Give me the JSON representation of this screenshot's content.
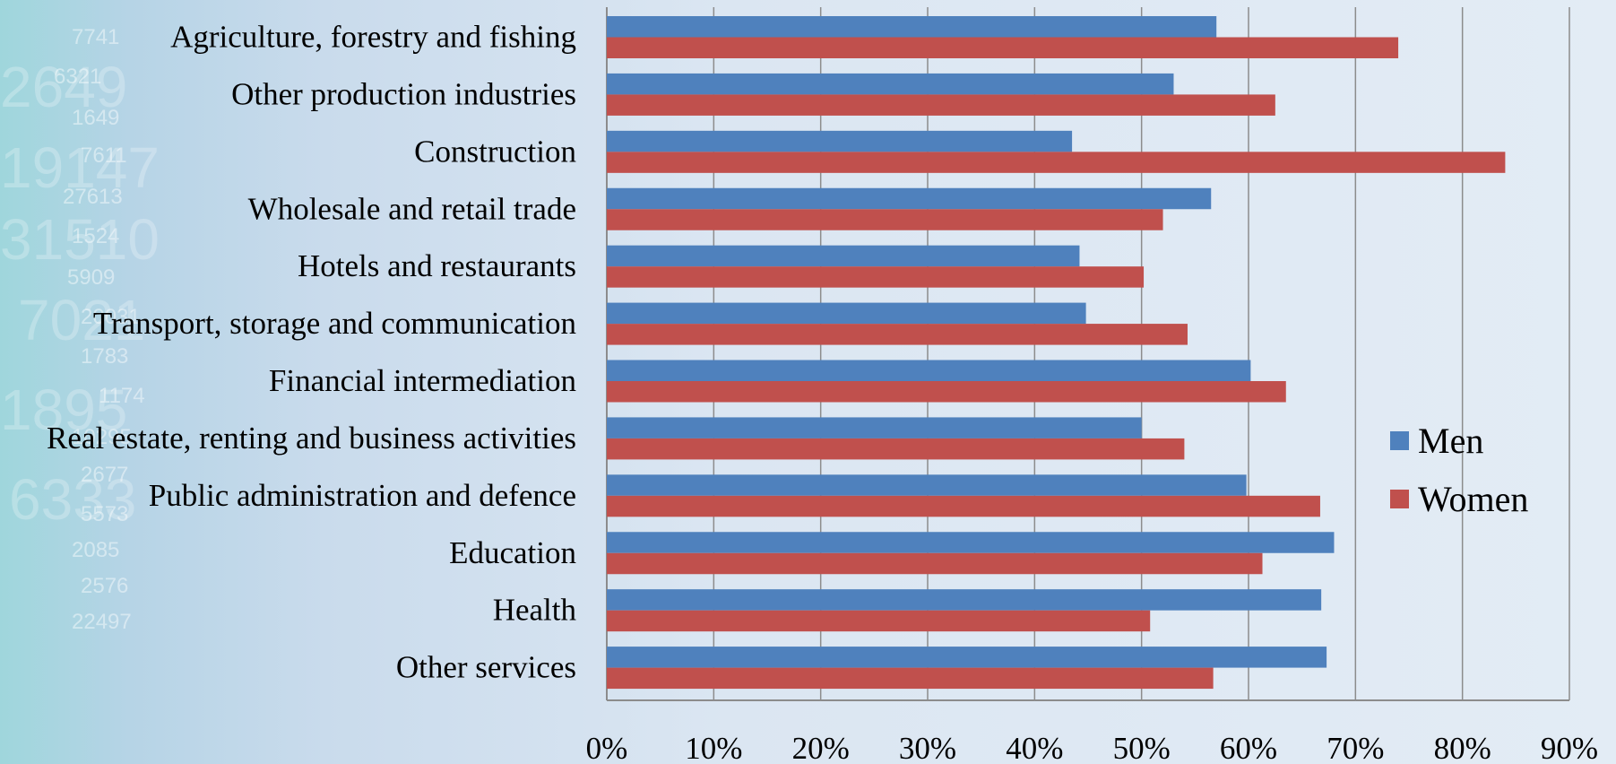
{
  "chart_data": {
    "type": "bar",
    "orientation": "horizontal",
    "categories": [
      "Agriculture, forestry and fishing",
      "Other production industries",
      "Construction",
      "Wholesale and retail trade",
      "Hotels and restaurants",
      "Transport, storage and communication",
      "Financial intermediation",
      "Real estate, renting and business activities",
      "Public administration and defence",
      "Education",
      "Health",
      "Other services"
    ],
    "series": [
      {
        "name": "Men",
        "color": "#4f81bd",
        "values": [
          57,
          53,
          43.5,
          56.5,
          44.2,
          44.8,
          60.2,
          50,
          59.8,
          68,
          66.8,
          67.3
        ]
      },
      {
        "name": "Women",
        "color": "#c0504d",
        "values": [
          74,
          62.5,
          84,
          52,
          50.2,
          54.3,
          63.5,
          54,
          66.7,
          61.3,
          50.8,
          56.7
        ]
      }
    ],
    "xlim": [
      0,
      90
    ],
    "xticks": [
      "0%",
      "10%",
      "20%",
      "30%",
      "40%",
      "50%",
      "60%",
      "70%",
      "80%",
      "90%"
    ],
    "grid": true,
    "legend_position": "right"
  },
  "background": {
    "numbers": [
      "7741",
      "6321",
      "1649",
      "7611",
      "27613",
      "1524",
      "5909",
      "20031",
      "1783",
      "1174",
      "10295",
      "2677",
      "5573",
      "2085",
      "2576",
      "22497",
      "2649",
      "19147",
      "31510",
      "7021",
      "1895",
      "6333"
    ]
  }
}
